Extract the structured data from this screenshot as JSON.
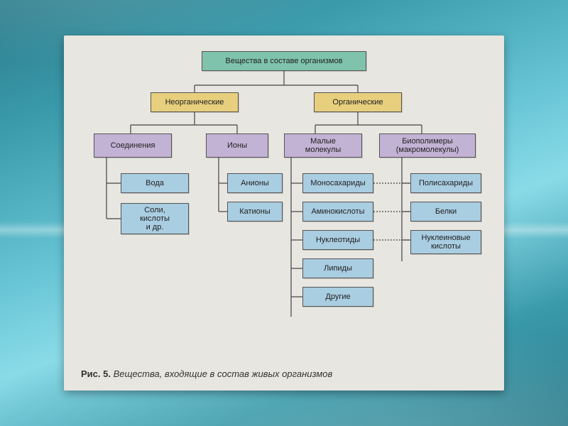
{
  "colors": {
    "green": "#7fc3ad",
    "yellow": "#e7cf7d",
    "purple": "#c2b2d4",
    "blue": "#a9cde1",
    "line": "#444",
    "sheet": "#e8e6e0"
  },
  "caption": {
    "prefix": "Рис. 5.",
    "text": "Вещества, входящие в состав живых организмов"
  },
  "nodes": {
    "root": {
      "label": "Вещества в составе организмов"
    },
    "inorg": {
      "label": "Неорганические"
    },
    "org": {
      "label": "Органические"
    },
    "compounds": {
      "label": "Соединения"
    },
    "ions": {
      "label": "Ионы"
    },
    "smallmol": {
      "label": "Малые\nмолекулы"
    },
    "biopoly": {
      "label": "Биополимеры\n(макромолекулы)"
    },
    "water": {
      "label": "Вода"
    },
    "salts": {
      "label": "Соли,\nкислоты\nи др."
    },
    "anions": {
      "label": "Анионы"
    },
    "cations": {
      "label": "Катионы"
    },
    "monosac": {
      "label": "Моносахариды"
    },
    "amino": {
      "label": "Аминокислоты"
    },
    "nucleo": {
      "label": "Нуклеотиды"
    },
    "lipids": {
      "label": "Липиды"
    },
    "other": {
      "label": "Другие"
    },
    "polysac": {
      "label": "Полисахариды"
    },
    "proteins": {
      "label": "Белки"
    },
    "nucleic": {
      "label": "Нуклеиновые\nкислоты"
    }
  }
}
